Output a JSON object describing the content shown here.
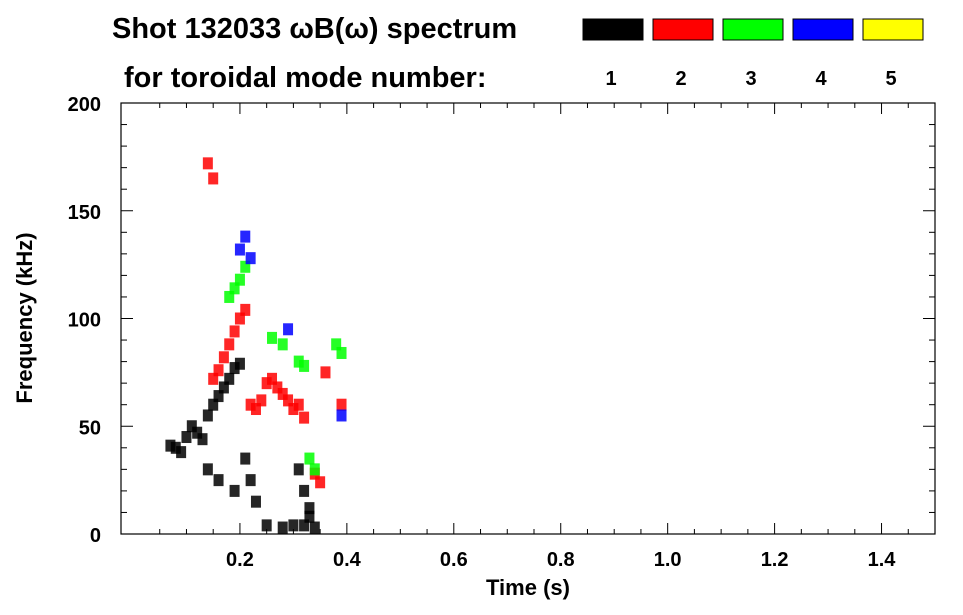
{
  "chart_data": {
    "type": "heatmap",
    "title": "Shot 132033 ωB(ω) spectrum",
    "subtitle": "for toroidal mode number:",
    "xlabel": "Time (s)",
    "ylabel": "Frequency (kHz)",
    "xlim": [
      0.0,
      1.5
    ],
    "ylim": [
      0,
      200
    ],
    "x_ticks": [
      {
        "value": 0.2,
        "label": "0.2"
      },
      {
        "value": 0.4,
        "label": "0.4"
      },
      {
        "value": 0.6,
        "label": "0.6"
      },
      {
        "value": 0.8,
        "label": "0.8"
      },
      {
        "value": 1.0,
        "label": "1.0"
      },
      {
        "value": 1.2,
        "label": "1.2"
      },
      {
        "value": 1.4,
        "label": "1.4"
      }
    ],
    "y_ticks": [
      {
        "value": 0,
        "label": "0"
      },
      {
        "value": 50,
        "label": "50"
      },
      {
        "value": 100,
        "label": "100"
      },
      {
        "value": 150,
        "label": "150"
      },
      {
        "value": 200,
        "label": "200"
      }
    ],
    "legend": [
      {
        "mode": "1",
        "color": "#000000"
      },
      {
        "mode": "2",
        "color": "#ff0000"
      },
      {
        "mode": "3",
        "color": "#00ff00"
      },
      {
        "mode": "4",
        "color": "#0000ff"
      },
      {
        "mode": "5",
        "color": "#ffff00"
      }
    ],
    "series": [
      {
        "name": "n=1",
        "color": "#000000",
        "points": [
          [
            0.07,
            41
          ],
          [
            0.08,
            40
          ],
          [
            0.09,
            38
          ],
          [
            0.1,
            45
          ],
          [
            0.11,
            50
          ],
          [
            0.12,
            47
          ],
          [
            0.13,
            44
          ],
          [
            0.14,
            55
          ],
          [
            0.15,
            60
          ],
          [
            0.16,
            64
          ],
          [
            0.17,
            68
          ],
          [
            0.18,
            72
          ],
          [
            0.19,
            77
          ],
          [
            0.2,
            79
          ],
          [
            0.14,
            30
          ],
          [
            0.16,
            25
          ],
          [
            0.19,
            20
          ],
          [
            0.21,
            35
          ],
          [
            0.22,
            25
          ],
          [
            0.23,
            15
          ],
          [
            0.25,
            4
          ],
          [
            0.28,
            3
          ],
          [
            0.3,
            4
          ],
          [
            0.32,
            4
          ],
          [
            0.34,
            3
          ],
          [
            0.31,
            30
          ],
          [
            0.32,
            20
          ],
          [
            0.33,
            12
          ],
          [
            0.33,
            8
          ]
        ]
      },
      {
        "name": "n=2",
        "color": "#ff0000",
        "points": [
          [
            0.14,
            172
          ],
          [
            0.15,
            165
          ],
          [
            0.15,
            72
          ],
          [
            0.16,
            76
          ],
          [
            0.17,
            82
          ],
          [
            0.18,
            88
          ],
          [
            0.19,
            94
          ],
          [
            0.2,
            100
          ],
          [
            0.21,
            104
          ],
          [
            0.22,
            60
          ],
          [
            0.23,
            58
          ],
          [
            0.24,
            62
          ],
          [
            0.25,
            70
          ],
          [
            0.26,
            72
          ],
          [
            0.27,
            68
          ],
          [
            0.28,
            65
          ],
          [
            0.29,
            62
          ],
          [
            0.3,
            58
          ],
          [
            0.31,
            60
          ],
          [
            0.32,
            54
          ],
          [
            0.34,
            28
          ],
          [
            0.35,
            24
          ],
          [
            0.36,
            75
          ],
          [
            0.39,
            60
          ]
        ]
      },
      {
        "name": "n=3",
        "color": "#00ff00",
        "points": [
          [
            0.18,
            110
          ],
          [
            0.19,
            114
          ],
          [
            0.2,
            118
          ],
          [
            0.21,
            124
          ],
          [
            0.26,
            91
          ],
          [
            0.28,
            88
          ],
          [
            0.31,
            80
          ],
          [
            0.32,
            78
          ],
          [
            0.33,
            35
          ],
          [
            0.34,
            30
          ],
          [
            0.38,
            88
          ],
          [
            0.39,
            84
          ]
        ]
      },
      {
        "name": "n=4",
        "color": "#0000ff",
        "points": [
          [
            0.2,
            132
          ],
          [
            0.21,
            138
          ],
          [
            0.22,
            128
          ],
          [
            0.29,
            95
          ],
          [
            0.39,
            55
          ]
        ]
      },
      {
        "name": "n=5",
        "color": "#ffff00",
        "points": []
      }
    ]
  }
}
